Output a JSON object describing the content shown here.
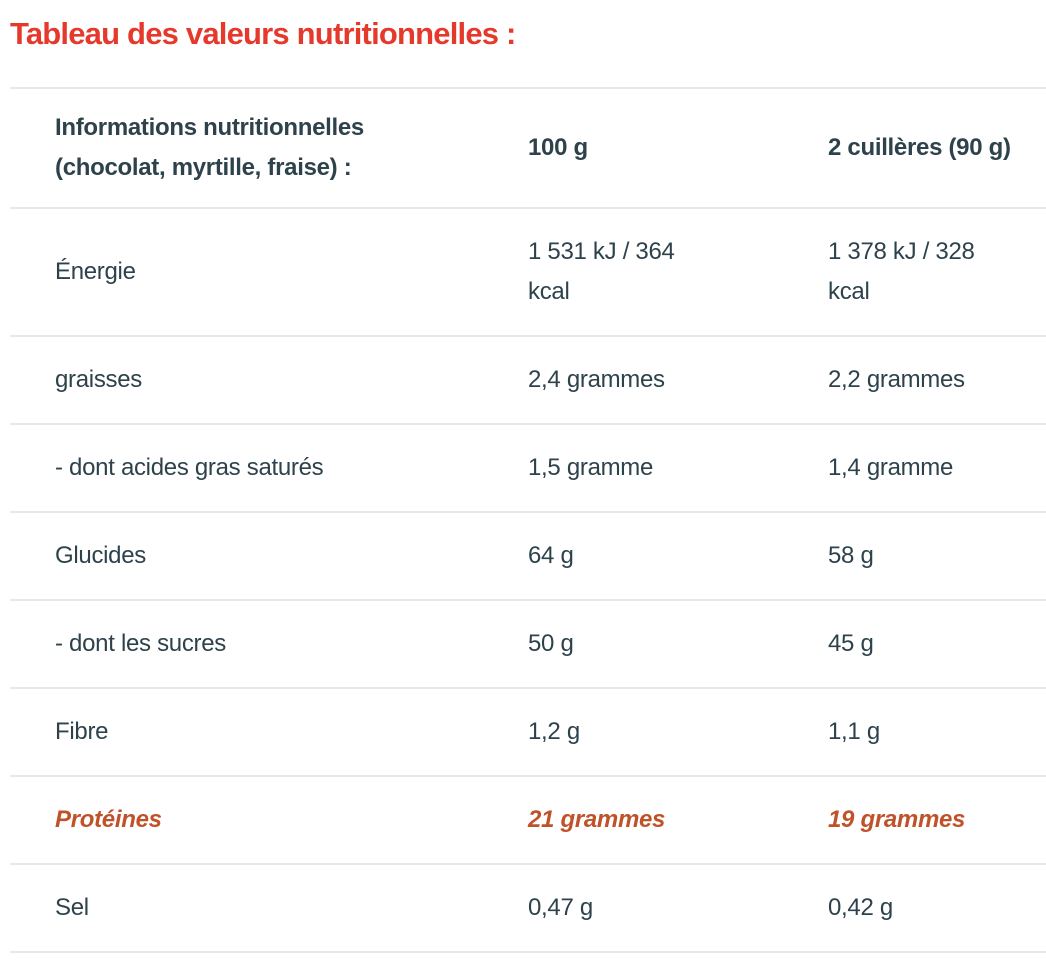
{
  "page_title": "Tableau des valeurs nutritionnelles :",
  "colors": {
    "title_red": "#e5392c",
    "body_text": "#2e424c",
    "protein_accent": "#c0522a",
    "divider": "#e6e9ec",
    "background": "#ffffff"
  },
  "table": {
    "header": {
      "label": "Informations nutritionnelles (chocolat, myrtille, fraise) :",
      "col_100g": "100 g",
      "col_serving": "2 cuillères (90 g)"
    },
    "rows": [
      {
        "label": "Énergie",
        "per_100g": "1 531 kJ / 364\nkcal",
        "per_serving": "1 378 kJ / 328\nkcal",
        "highlight": false
      },
      {
        "label": "graisses",
        "per_100g": "2,4 grammes",
        "per_serving": "2,2 grammes",
        "highlight": false
      },
      {
        "label": "- dont acides gras saturés",
        "per_100g": "1,5 gramme",
        "per_serving": "1,4 gramme",
        "highlight": false
      },
      {
        "label": "Glucides",
        "per_100g": "64 g",
        "per_serving": "58 g",
        "highlight": false
      },
      {
        "label": "- dont les sucres",
        "per_100g": "50 g",
        "per_serving": "45 g",
        "highlight": false
      },
      {
        "label": "Fibre",
        "per_100g": "1,2 g",
        "per_serving": "1,1 g",
        "highlight": false
      },
      {
        "label": "Protéines",
        "per_100g": "21 grammes",
        "per_serving": "19 grammes",
        "highlight": true
      },
      {
        "label": "Sel",
        "per_100g": "0,47 g",
        "per_serving": "0,42 g",
        "highlight": false
      }
    ]
  }
}
